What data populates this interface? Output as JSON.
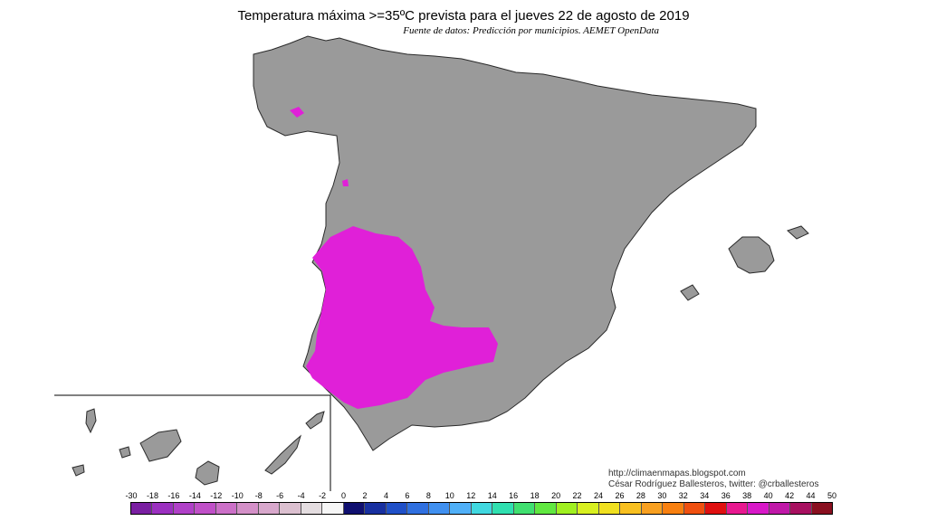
{
  "map": {
    "title": "Temperatura máxima >=35ºC prevista para el jueves 22 de agosto de 2019",
    "subtitle": "Fuente de datos: Predicción por municipios. AEMET OpenData",
    "credits": {
      "line1": "http://climaenmapas.blogspot.com",
      "line2": "César Rodríguez Ballesteros, twitter: @crballesteros"
    },
    "colors": {
      "land": "#9a9a9a",
      "border": "#2a2a2a",
      "highlight": "#e020d8",
      "background": "#ffffff"
    }
  },
  "legend": {
    "labels": [
      "-30",
      "-18",
      "-16",
      "-14",
      "-12",
      "-10",
      "-8",
      "-6",
      "-4",
      "-2",
      "0",
      "2",
      "4",
      "6",
      "8",
      "10",
      "12",
      "14",
      "16",
      "18",
      "20",
      "22",
      "24",
      "26",
      "28",
      "30",
      "32",
      "34",
      "36",
      "38",
      "40",
      "42",
      "44",
      "50"
    ],
    "colors": [
      "#7a1fa2",
      "#9b30c0",
      "#b040c8",
      "#c050c8",
      "#cc70c8",
      "#d490c8",
      "#d8a8cc",
      "#dcc0d0",
      "#e4dde0",
      "#f6f6f6",
      "#101070",
      "#1830a0",
      "#2050c8",
      "#3070e0",
      "#4090f0",
      "#50b0f8",
      "#40d8e0",
      "#30e0b0",
      "#40e070",
      "#60e840",
      "#a0f020",
      "#d8f020",
      "#f0e020",
      "#f8c020",
      "#f8a020",
      "#f88010",
      "#f05010",
      "#e01010",
      "#e81890",
      "#d818c8",
      "#c018a8",
      "#a81060",
      "#8a1020"
    ]
  }
}
